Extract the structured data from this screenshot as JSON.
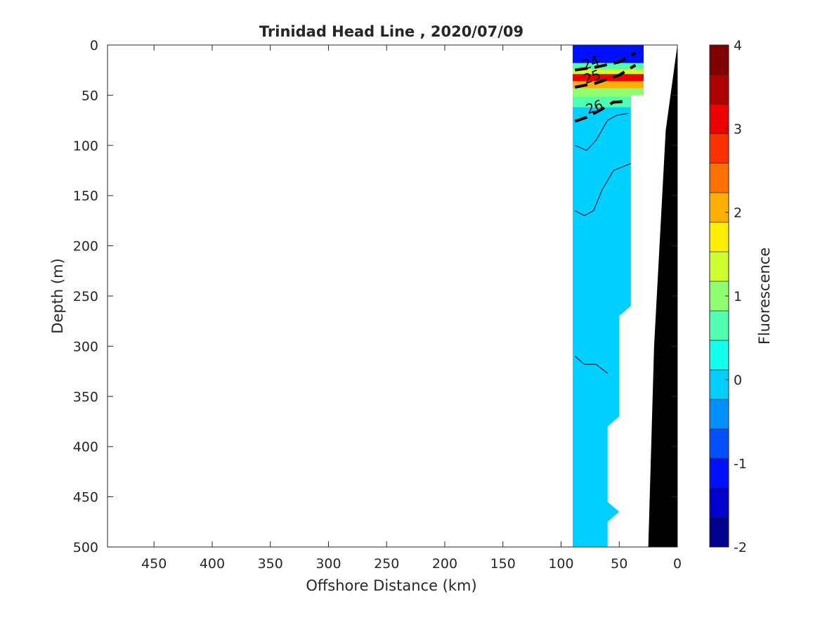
{
  "chart_data": {
    "type": "heatmap",
    "title": "Trinidad Head Line , 2020/07/09",
    "xlabel": "Offshore Distance (km)",
    "ylabel": "Depth (m)",
    "xlim": [
      490,
      0
    ],
    "ylim": [
      0,
      500
    ],
    "x_reversed": true,
    "y_reversed": true,
    "x_ticks": [
      "450",
      "400",
      "350",
      "300",
      "250",
      "200",
      "150",
      "100",
      "50",
      "0"
    ],
    "y_ticks": [
      "0",
      "50",
      "100",
      "150",
      "200",
      "250",
      "300",
      "350",
      "400",
      "450",
      "500"
    ],
    "colorbar": {
      "label": "Fluorescence",
      "range": [
        -2,
        4
      ],
      "step": 0.25,
      "ticks": [
        "4",
        "3",
        "2",
        "1",
        "0",
        "-1",
        "-2"
      ],
      "colormap": [
        "#00008f",
        "#0000cf",
        "#0010ff",
        "#0050ff",
        "#0090ff",
        "#00d0ff",
        "#10ffef",
        "#50ffaf",
        "#90ff6f",
        "#cfff30",
        "#ffef00",
        "#ffaf00",
        "#ff7000",
        "#ff3000",
        "#ef0000",
        "#af0000",
        "#800000"
      ]
    },
    "background_fill_value": 0.1,
    "sampled_region": {
      "boundary_km_depth": [
        [
          90,
          0
        ],
        [
          29,
          0
        ],
        [
          29,
          50
        ],
        [
          40,
          50
        ],
        [
          40,
          260
        ],
        [
          50,
          270
        ],
        [
          50,
          370
        ],
        [
          60,
          380
        ],
        [
          60,
          455
        ],
        [
          50,
          465
        ],
        [
          60,
          475
        ],
        [
          60,
          500
        ],
        [
          90,
          500
        ]
      ]
    },
    "surface_layer_values": [
      {
        "depth": [
          0,
          18
        ],
        "value": -1.0
      },
      {
        "depth": [
          18,
          24
        ],
        "value": 0.5
      },
      {
        "depth": [
          24,
          29
        ],
        "value": 1.5
      },
      {
        "depth": [
          29,
          36
        ],
        "value": 3.0
      },
      {
        "depth": [
          36,
          43
        ],
        "value": 2.0
      },
      {
        "depth": [
          43,
          52
        ],
        "value": 1.0
      },
      {
        "depth": [
          52,
          62
        ],
        "value": 0.5
      }
    ],
    "density_contours": [
      {
        "label": "24",
        "points": [
          [
            88,
            25
          ],
          [
            70,
            22
          ],
          [
            50,
            17
          ],
          [
            36,
            8
          ]
        ]
      },
      {
        "label": "25",
        "points": [
          [
            88,
            42
          ],
          [
            70,
            38
          ],
          [
            50,
            30
          ],
          [
            36,
            20
          ]
        ]
      },
      {
        "label": "26",
        "points": [
          [
            88,
            76
          ],
          [
            78,
            72
          ],
          [
            65,
            64
          ],
          [
            55,
            57
          ],
          [
            42,
            56
          ]
        ]
      }
    ],
    "thin_contours": [
      {
        "points": [
          [
            88,
            100
          ],
          [
            78,
            105
          ],
          [
            70,
            95
          ],
          [
            60,
            75
          ],
          [
            52,
            70
          ],
          [
            42,
            68
          ]
        ]
      },
      {
        "points": [
          [
            88,
            165
          ],
          [
            80,
            170
          ],
          [
            72,
            165
          ],
          [
            65,
            145
          ],
          [
            55,
            125
          ],
          [
            40,
            118
          ]
        ]
      },
      {
        "points": [
          [
            88,
            310
          ],
          [
            80,
            318
          ],
          [
            70,
            318
          ],
          [
            60,
            327
          ]
        ]
      }
    ],
    "annotations": [
      {
        "text": "24",
        "x": 73,
        "y": 22
      },
      {
        "text": "25",
        "x": 72,
        "y": 36
      },
      {
        "text": "26",
        "x": 70,
        "y": 66
      }
    ],
    "bathymetry": [
      [
        0,
        0
      ],
      [
        10,
        85
      ],
      [
        20,
        300
      ],
      [
        25,
        500
      ],
      [
        0,
        500
      ]
    ]
  }
}
